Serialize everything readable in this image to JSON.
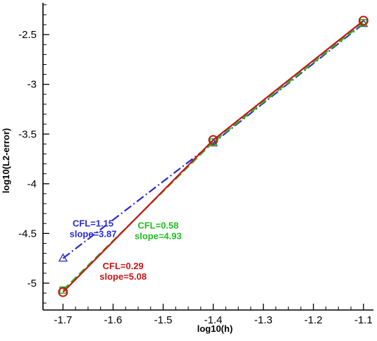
{
  "chart_data": {
    "type": "line",
    "title": "",
    "xlabel": "log10(h)",
    "ylabel": "log10(L2-error)",
    "xlim": [
      -1.74,
      -1.08
    ],
    "ylim": [
      -5.27,
      -2.18
    ],
    "grid": false,
    "x_ticks": [
      -1.7,
      -1.6,
      -1.5,
      -1.4,
      -1.3,
      -1.2,
      -1.1
    ],
    "x_tick_labels": [
      "-1.7",
      "-1.6",
      "-1.5",
      "-1.4",
      "-1.3",
      "-1.2",
      "-1.1"
    ],
    "y_ticks": [
      -2.5,
      -3,
      -3.5,
      -4,
      -4.5,
      -5
    ],
    "y_tick_labels": [
      "-2.5",
      "-3",
      "-3.5",
      "-4",
      "-4.5",
      "-5"
    ],
    "series": [
      {
        "color": "#2a2ad4",
        "line_style": "dash-dot",
        "marker": "triangle",
        "x": [
          -1.7,
          -1.4,
          -1.1
        ],
        "y": [
          -4.75,
          -3.59,
          -2.39
        ]
      },
      {
        "color": "#1fbf1f",
        "line_style": "dashed",
        "marker": "square",
        "x": [
          -1.7,
          -1.4,
          -1.1
        ],
        "y": [
          -5.07,
          -3.58,
          -2.38
        ]
      },
      {
        "color": "#c81414",
        "line_style": "solid",
        "marker": "circle",
        "x": [
          -1.7,
          -1.4,
          -1.1
        ],
        "y": [
          -5.09,
          -3.56,
          -2.36
        ]
      }
    ],
    "annotations": [
      {
        "lines": [
          "CFL=1.15",
          "slope=3.87"
        ],
        "color": "#2a2ad4",
        "x": -1.64,
        "y": -4.43
      },
      {
        "lines": [
          "CFL=0.58",
          "slope=4.93"
        ],
        "color": "#1fbf1f",
        "x": -1.51,
        "y": -4.45
      },
      {
        "lines": [
          "CFL=0.29",
          "slope=5.08"
        ],
        "color": "#c81414",
        "x": -1.58,
        "y": -4.86
      }
    ]
  }
}
